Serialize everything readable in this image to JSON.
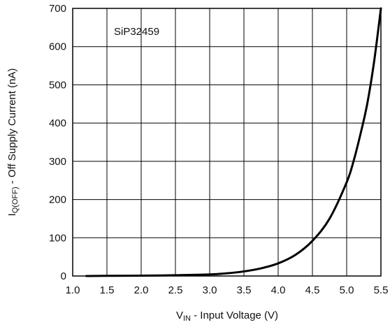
{
  "chart_data": {
    "type": "line",
    "title": "",
    "annotation": "SiP32459",
    "xlabel": {
      "main": "V",
      "sub": "IN",
      "rest": " - Input Voltage (V)"
    },
    "ylabel": {
      "main": "I",
      "sub": "Q(OFF)",
      "rest": " - Off Supply Current (nA)"
    },
    "xlim": [
      1.0,
      5.5
    ],
    "ylim": [
      0,
      700
    ],
    "xticks": [
      1.0,
      1.5,
      2.0,
      2.5,
      3.0,
      3.5,
      4.0,
      4.5,
      5.0,
      5.5
    ],
    "xtick_labels": [
      "1.0",
      "1.5",
      "2.0",
      "2.5",
      "3.0",
      "3.5",
      "4.0",
      "4.5",
      "5.0",
      "5.5"
    ],
    "yticks": [
      0,
      100,
      200,
      300,
      400,
      500,
      600,
      700
    ],
    "ytick_labels": [
      "0",
      "100",
      "200",
      "300",
      "400",
      "500",
      "600",
      "700"
    ],
    "grid": true,
    "series": [
      {
        "x": [
          1.2,
          1.5,
          2.0,
          2.5,
          3.0,
          3.25,
          3.5,
          3.75,
          4.0,
          4.25,
          4.5,
          4.75,
          5.0,
          5.1,
          5.2,
          5.3,
          5.4,
          5.5
        ],
        "y": [
          0,
          0.5,
          1,
          2,
          4,
          7,
          12,
          20,
          33,
          55,
          92,
          150,
          245,
          300,
          370,
          450,
          560,
          700
        ]
      }
    ]
  }
}
